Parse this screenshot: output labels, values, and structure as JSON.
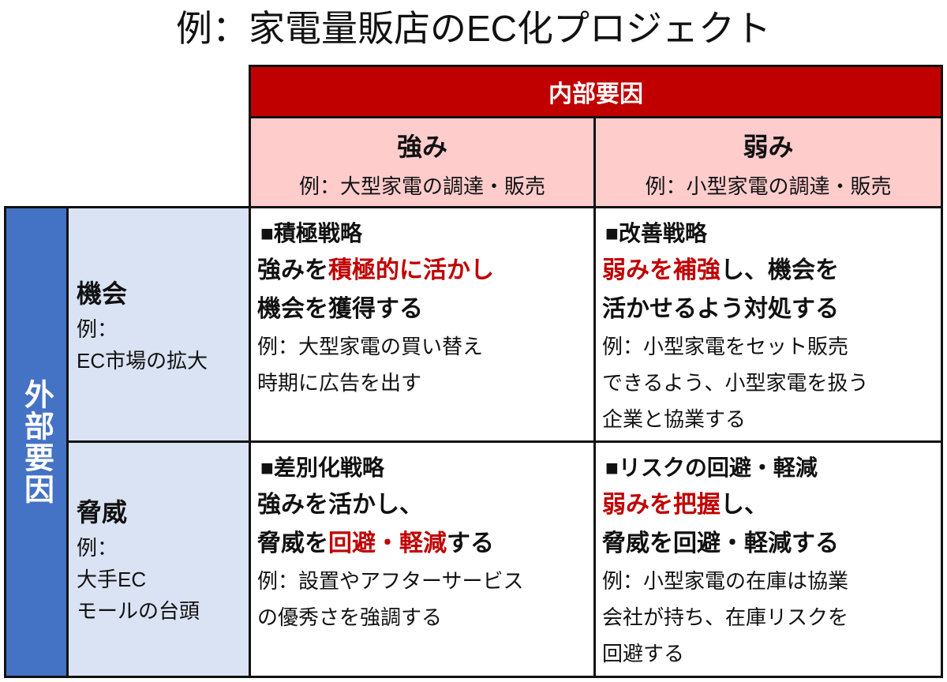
{
  "title": "例：家電量販店のEC化プロジェクト",
  "internal_label": "内部要因",
  "external_label": "外部要因",
  "colors": {
    "internal": "#c00000",
    "column_header": "#ffcccc",
    "external": "#4472c4",
    "row_header": "#dae3f3",
    "highlight": "#c00000"
  },
  "columns": [
    {
      "heading": "強み",
      "example": "例：大型家電の調達・販売"
    },
    {
      "heading": "弱み",
      "example": "例：小型家電の調達・販売"
    }
  ],
  "rows": [
    {
      "heading": "機会",
      "lines": [
        "例：",
        "EC市場の拡大"
      ]
    },
    {
      "heading": "脅威",
      "lines": [
        "例：",
        "大手EC",
        "モールの台頭"
      ]
    }
  ],
  "strategies": [
    {
      "heading": "■積極戦略",
      "main": [
        [
          {
            "text": "強みを",
            "red": false
          },
          {
            "text": "積極的に活かし",
            "red": true
          }
        ],
        [
          {
            "text": "機会を獲得する",
            "red": false
          }
        ]
      ],
      "example": [
        "例：大型家電の買い替え",
        "時期に広告を出す"
      ]
    },
    {
      "heading": "■改善戦略",
      "main": [
        [
          {
            "text": "弱みを補強",
            "red": true
          },
          {
            "text": "し、機会を",
            "red": false
          }
        ],
        [
          {
            "text": "活かせるよう対処する",
            "red": false
          }
        ]
      ],
      "example": [
        "例：小型家電をセット販売",
        "できるよう、小型家電を扱う",
        "企業と協業する"
      ]
    },
    {
      "heading": "■差別化戦略",
      "main": [
        [
          {
            "text": "強みを活かし、",
            "red": false
          }
        ],
        [
          {
            "text": "脅威を",
            "red": false
          },
          {
            "text": "回避・軽減",
            "red": true
          },
          {
            "text": "する",
            "red": false
          }
        ]
      ],
      "example": [
        "例：設置やアフターサービス",
        "の優秀さを強調する"
      ]
    },
    {
      "heading": "■リスクの回避・軽減",
      "main": [
        [
          {
            "text": "弱みを把握",
            "red": true
          },
          {
            "text": "し、",
            "red": false
          }
        ],
        [
          {
            "text": "脅威を回避・軽減する",
            "red": false
          }
        ]
      ],
      "example": [
        "例：小型家電の在庫は協業",
        "会社が持ち、在庫リスクを",
        "回避する"
      ]
    }
  ]
}
